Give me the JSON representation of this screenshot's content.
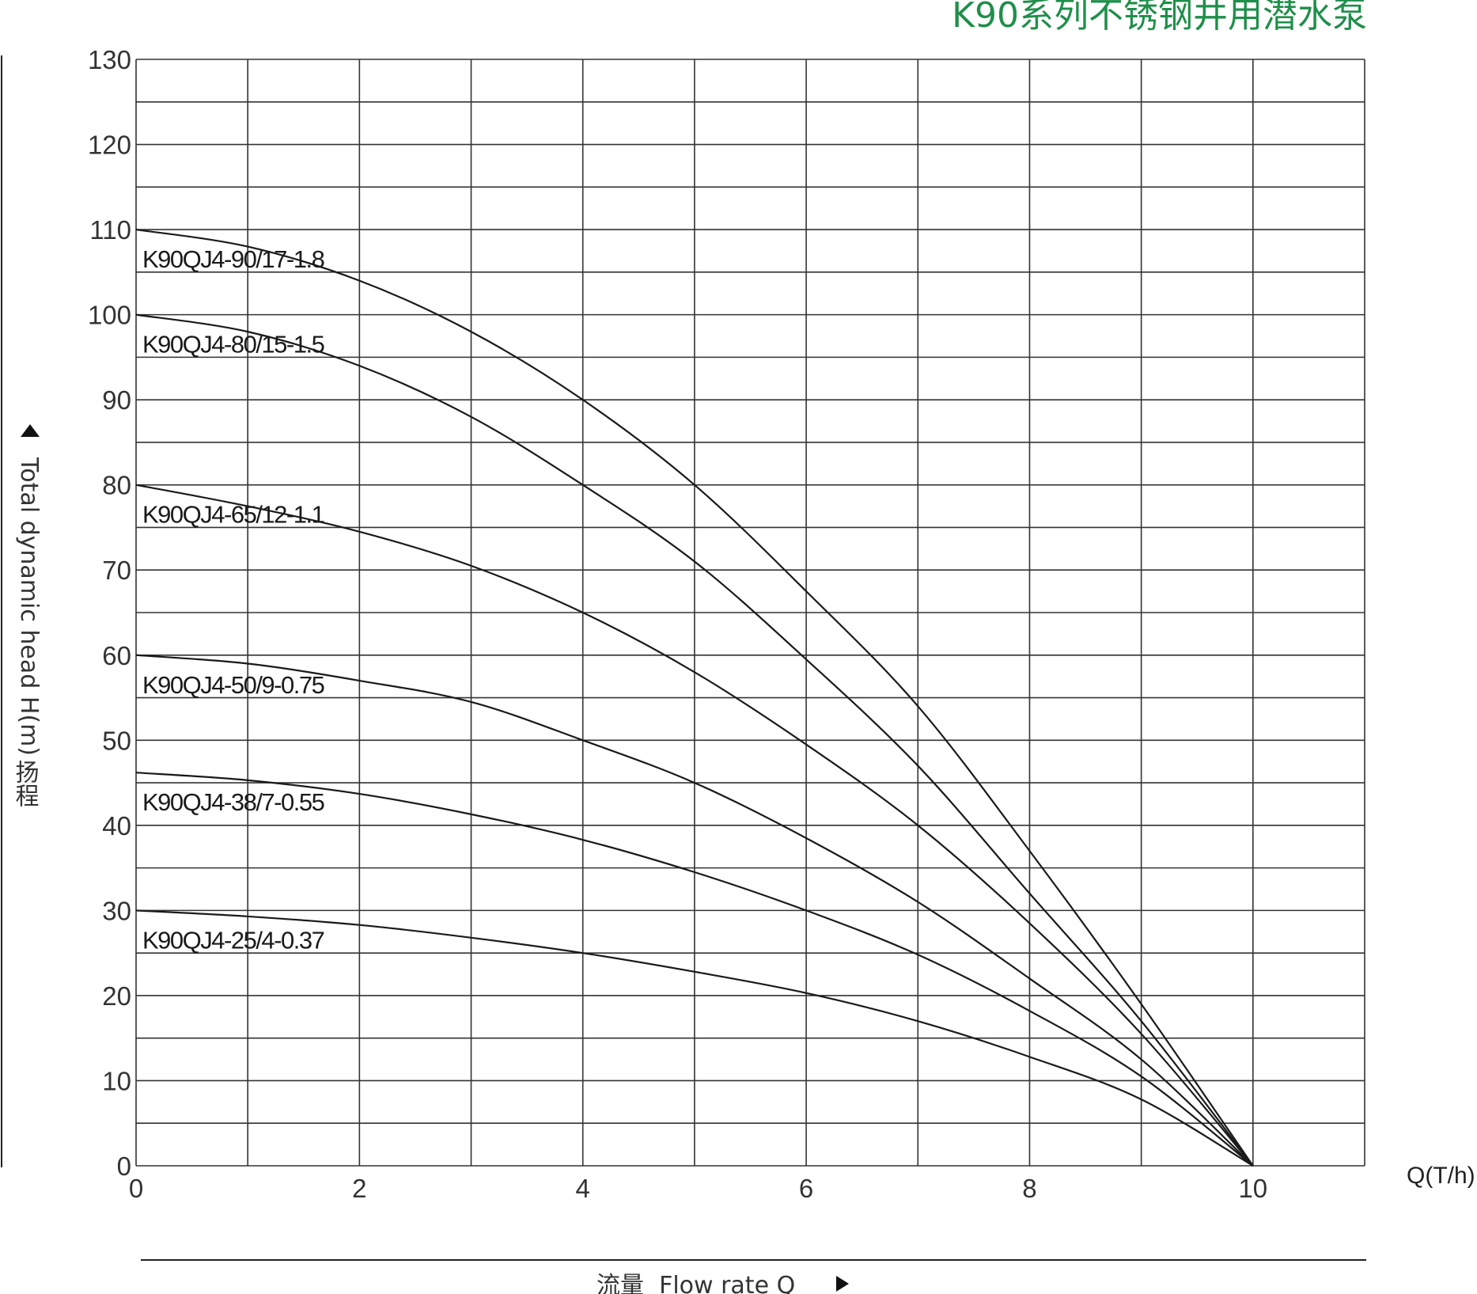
{
  "chart_data": {
    "type": "line",
    "title": "K90系列不锈钢井用潜水泵",
    "xlabel": "流量  Flow rate Q",
    "ylabel": "Total dynamic head H(m)",
    "ylabel_cn": "扬程",
    "x_unit": "Q(T/h)",
    "xlim": [
      0,
      11
    ],
    "ylim": [
      0,
      130
    ],
    "x_ticks": [
      "0",
      "2",
      "4",
      "6",
      "8",
      "10"
    ],
    "y_ticks": [
      "0",
      "10",
      "20",
      "30",
      "40",
      "50",
      "60",
      "70",
      "80",
      "90",
      "100",
      "110",
      "120",
      "130"
    ],
    "grid": true,
    "series": [
      {
        "name": "K90QJ4-90/17-1.8",
        "x": [
          0,
          1,
          2,
          3,
          4,
          5,
          6,
          7,
          8,
          9,
          10
        ],
        "y": [
          110,
          108,
          104,
          98,
          90,
          80,
          67.5,
          54,
          37,
          19,
          0
        ]
      },
      {
        "name": "K90QJ4-80/15-1.5",
        "x": [
          0,
          1,
          2,
          3,
          4,
          5,
          6,
          7,
          8,
          9,
          10
        ],
        "y": [
          100,
          98,
          94,
          88,
          80,
          71,
          59.5,
          47,
          32,
          17,
          0
        ]
      },
      {
        "name": "K90QJ4-65/12-1.1",
        "x": [
          0,
          1,
          2,
          3,
          4,
          5,
          6,
          7,
          8,
          9,
          10
        ],
        "y": [
          80,
          77.5,
          74.5,
          70.5,
          65,
          58,
          49.5,
          40,
          28.5,
          15.5,
          0
        ]
      },
      {
        "name": "K90QJ4-50/9-0.75",
        "x": [
          0,
          1,
          2,
          3,
          4,
          5,
          6,
          7,
          8,
          9,
          10
        ],
        "y": [
          60,
          59,
          57,
          54.5,
          50,
          45,
          38.5,
          31,
          22,
          12.5,
          0
        ]
      },
      {
        "name": "K90QJ4-38/7-0.55",
        "x": [
          0,
          1,
          2,
          3,
          4,
          5,
          6,
          7,
          8,
          9,
          10
        ],
        "y": [
          46.2,
          45.3,
          43.7,
          41.3,
          38.3,
          34.5,
          30,
          24.8,
          18.2,
          10.5,
          0
        ]
      },
      {
        "name": "K90QJ4-25/4-0.37",
        "x": [
          0,
          1,
          2,
          3,
          4,
          5,
          6,
          7,
          8,
          9,
          10
        ],
        "y": [
          30,
          29.3,
          28.3,
          26.8,
          25,
          22.8,
          20.3,
          17,
          12.8,
          7.8,
          0
        ]
      }
    ]
  }
}
